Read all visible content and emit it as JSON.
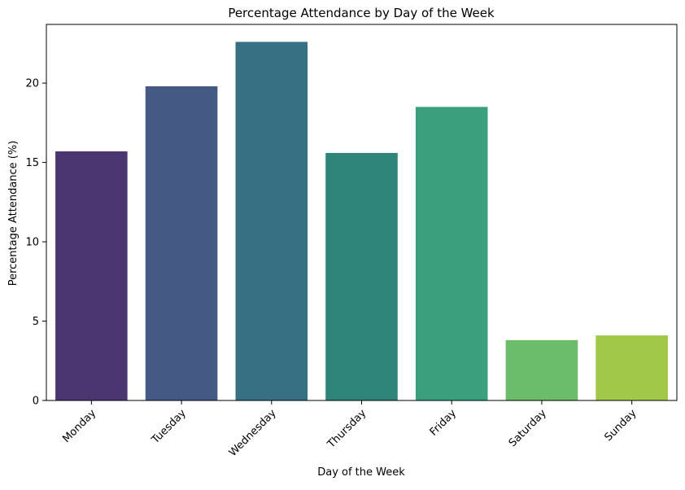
{
  "chart_data": {
    "type": "bar",
    "title": "Percentage Attendance by Day of the Week",
    "xlabel": "Day of the Week",
    "ylabel": "Percentage Attendance (%)",
    "categories": [
      "Monday",
      "Tuesday",
      "Wednesday",
      "Thursday",
      "Friday",
      "Saturday",
      "Sunday"
    ],
    "values": [
      15.7,
      19.8,
      22.6,
      15.6,
      18.5,
      3.8,
      4.1
    ],
    "colors": [
      "#4b3671",
      "#455985",
      "#387083",
      "#2e8478",
      "#3a9f7c",
      "#6bbd6a",
      "#a1c846"
    ],
    "ylim": [
      0,
      23.7
    ],
    "yticks": [
      0,
      5,
      10,
      15,
      20
    ],
    "grid": false,
    "legend": "none"
  }
}
